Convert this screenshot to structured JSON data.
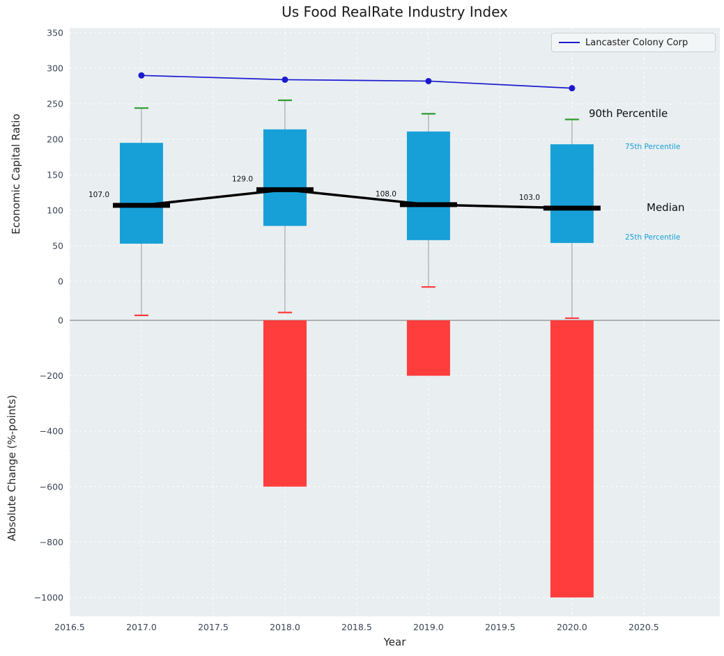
{
  "colors": {
    "plot_bg": "#e9eef0",
    "grid": "#ffffff",
    "box_fill": "#17a0d8",
    "p90_cap": "#2d9b2d",
    "p10_cap": "#ff3b3b",
    "neg_bar": "#ff3d3d",
    "company_line": "#1a1acd",
    "median_line": "#000000",
    "whisker": "#9a9a9a",
    "zero_line": "#8c8c8c",
    "tick_text": "#3a4458",
    "annotation_blue": "#179fd8",
    "median_label_text": "#111111"
  },
  "chart_data": {
    "type": "combo: percentile box/whisker + median line + company line (top panel), negative bar chart (bottom panel)",
    "title": "Us Food RealRate Industry Index",
    "x": [
      2017,
      2018,
      2019,
      2020
    ],
    "company": {
      "name": "Lancaster Colony Corp",
      "values": [
        290,
        284,
        282,
        272
      ]
    },
    "median": {
      "values": [
        107,
        129,
        108,
        103
      ],
      "labels": [
        "107.0",
        "129.0",
        "108.0",
        "103.0"
      ]
    },
    "percentiles": {
      "p90": [
        244,
        255,
        236,
        228
      ],
      "p75": [
        195,
        214,
        211,
        193
      ],
      "p25": [
        53,
        78,
        58,
        54
      ],
      "p10": [
        -48,
        -44,
        -8,
        -52
      ]
    },
    "abs_change": [
      0,
      -600,
      -200,
      -1000
    ],
    "annotations": {
      "p90": "90th Percentile",
      "p75": "75th Percentile",
      "median": "Median",
      "p25": "25th Percentile"
    },
    "top_axis": {
      "label": "Economic Capital Ratio",
      "lim": [
        -55,
        357
      ],
      "ticks": [
        0,
        50,
        100,
        150,
        200,
        250,
        300,
        350
      ],
      "tick_labels": [
        "0",
        "50",
        "100",
        "150",
        "200",
        "250",
        "300",
        "350"
      ]
    },
    "bottom_axis": {
      "label": "Absolute Change (%-points)",
      "lim": [
        -1068,
        0
      ],
      "ticks": [
        0,
        -200,
        -400,
        -600,
        -800,
        -1000
      ],
      "tick_labels": [
        "0",
        "−200",
        "−400",
        "−600",
        "−800",
        "−1000"
      ]
    },
    "x_axis": {
      "label": "Year",
      "lim": [
        2016.5,
        2021.03
      ],
      "ticks": [
        2016.5,
        2017,
        2017.5,
        2018,
        2018.5,
        2019,
        2019.5,
        2020,
        2020.5
      ],
      "tick_labels": [
        "2016.5",
        "2017.0",
        "2017.5",
        "2018.0",
        "2018.5",
        "2019.0",
        "2019.5",
        "2020.0",
        "2020.5"
      ]
    },
    "legend_position": "upper right",
    "grid": "on, dashed"
  }
}
